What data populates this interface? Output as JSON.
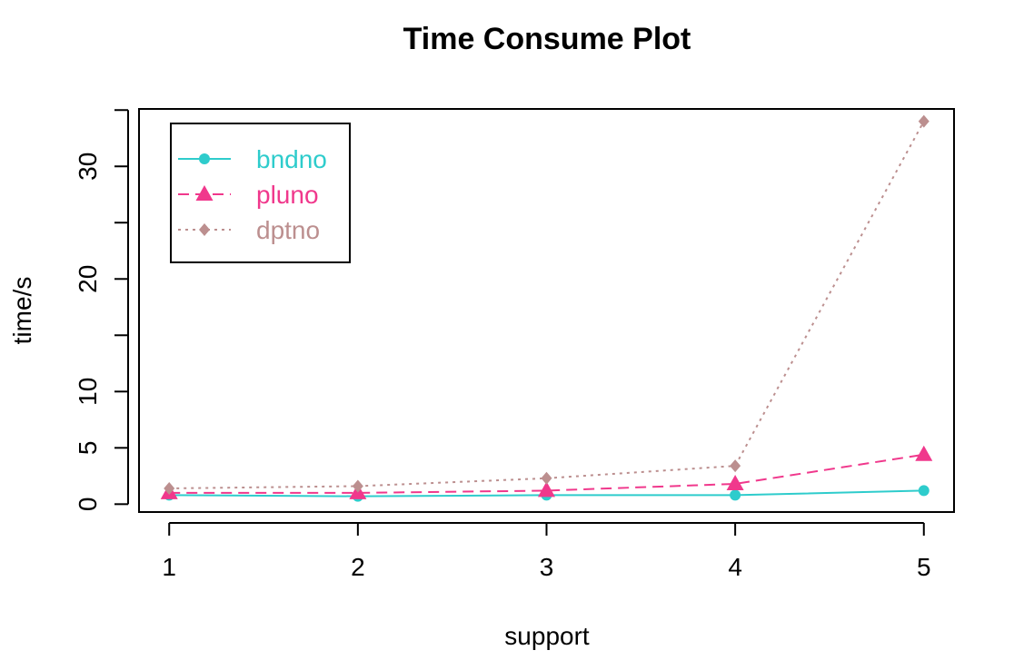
{
  "colors": {
    "bndno": "#2ECCCC",
    "pluno": "#F0388C",
    "dptno": "#BC8F8F",
    "axis": "#000000"
  },
  "chart_data": {
    "type": "line",
    "title": "Time Consume Plot",
    "xlabel": "support",
    "ylabel": "time/s",
    "x": [
      1,
      2,
      3,
      4,
      5
    ],
    "x_ticks": [
      "1",
      "2",
      "3",
      "4",
      "5"
    ],
    "y_ticks": [
      "0",
      "5",
      "10",
      "20",
      "30"
    ],
    "y_tick_values": [
      0,
      5,
      10,
      20,
      30
    ],
    "y_minor_ticks": [
      15,
      25,
      35
    ],
    "xlim": [
      0.84,
      5.16
    ],
    "ylim": [
      -0.7,
      35.1
    ],
    "grid": false,
    "legend_position": "top-left",
    "series": [
      {
        "name": "bndno",
        "values": [
          0.8,
          0.7,
          0.8,
          0.8,
          1.2
        ],
        "marker": "circle",
        "line": "solid",
        "color": "#2ECCCC"
      },
      {
        "name": "pluno",
        "values": [
          1.0,
          1.0,
          1.2,
          1.8,
          4.4
        ],
        "marker": "triangle",
        "line": "dashed",
        "color": "#F0388C"
      },
      {
        "name": "dptno",
        "values": [
          1.4,
          1.6,
          2.3,
          3.4,
          34.0
        ],
        "marker": "diamond",
        "line": "dotted",
        "color": "#BC8F8F"
      }
    ]
  }
}
